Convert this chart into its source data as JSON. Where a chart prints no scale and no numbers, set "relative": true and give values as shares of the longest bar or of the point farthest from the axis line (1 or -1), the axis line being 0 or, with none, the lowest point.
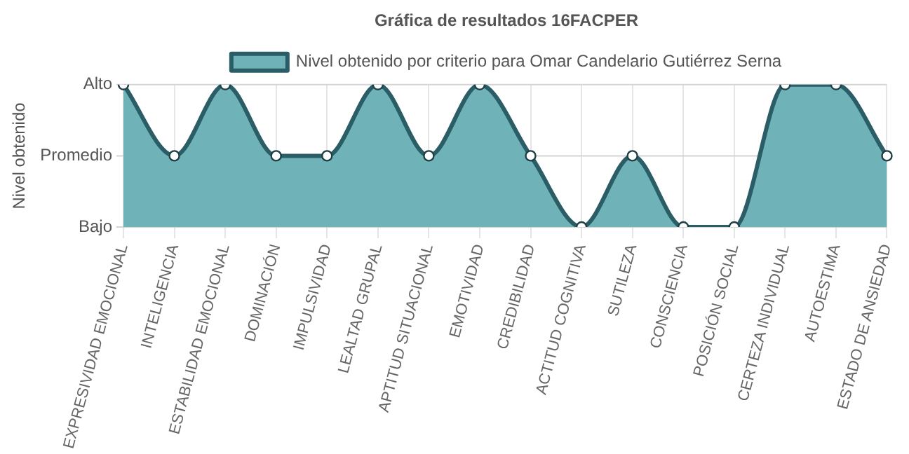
{
  "chart_data": {
    "type": "area",
    "title": "Gráfica de resultados 16FACPER",
    "ylabel": "Nivel obtenido",
    "relative": true,
    "categories": [
      "EXPRESIVIDAD EMOCIONAL",
      "INTELIGENCIA",
      "ESTABILIDAD EMOCIONAL",
      "DOMINACIÓN",
      "IMPULSIVIDAD",
      "LEALTAD GRUPAL",
      "APTITUD SITUACIONAL",
      "EMOTIVIDAD",
      "CREDIBILIDAD",
      "ACTITUD COGNITIVA",
      "SUTILEZA",
      "CONSCIENCIA",
      "POSICIÓN SOCIAL",
      "CERTEZA INDIVIDUAL",
      "AUTOESTIMA",
      "ESTADO DE ANSIEDAD"
    ],
    "series": [
      {
        "name": "Nivel obtenido por criterio para Omar Candelario Gutiérrez Serna",
        "color": "#2a5d66",
        "values": [
          1,
          0.5,
          1,
          0.5,
          0.5,
          1,
          0.5,
          1,
          0.5,
          0,
          0.5,
          0,
          0,
          1,
          1,
          0.5
        ]
      }
    ],
    "ref_lines": [
      {
        "axis": "y",
        "value": 1,
        "label": "Alto",
        "color": "#d4d4d4"
      },
      {
        "axis": "y",
        "value": 0.5,
        "label": "Promedio",
        "color": "#d4d4d4"
      },
      {
        "axis": "y",
        "value": 0,
        "label": "Bajo",
        "color": "#d4d4d4"
      }
    ],
    "grid": "x",
    "legend": "top",
    "marker": "circle",
    "line_style": "solid"
  }
}
